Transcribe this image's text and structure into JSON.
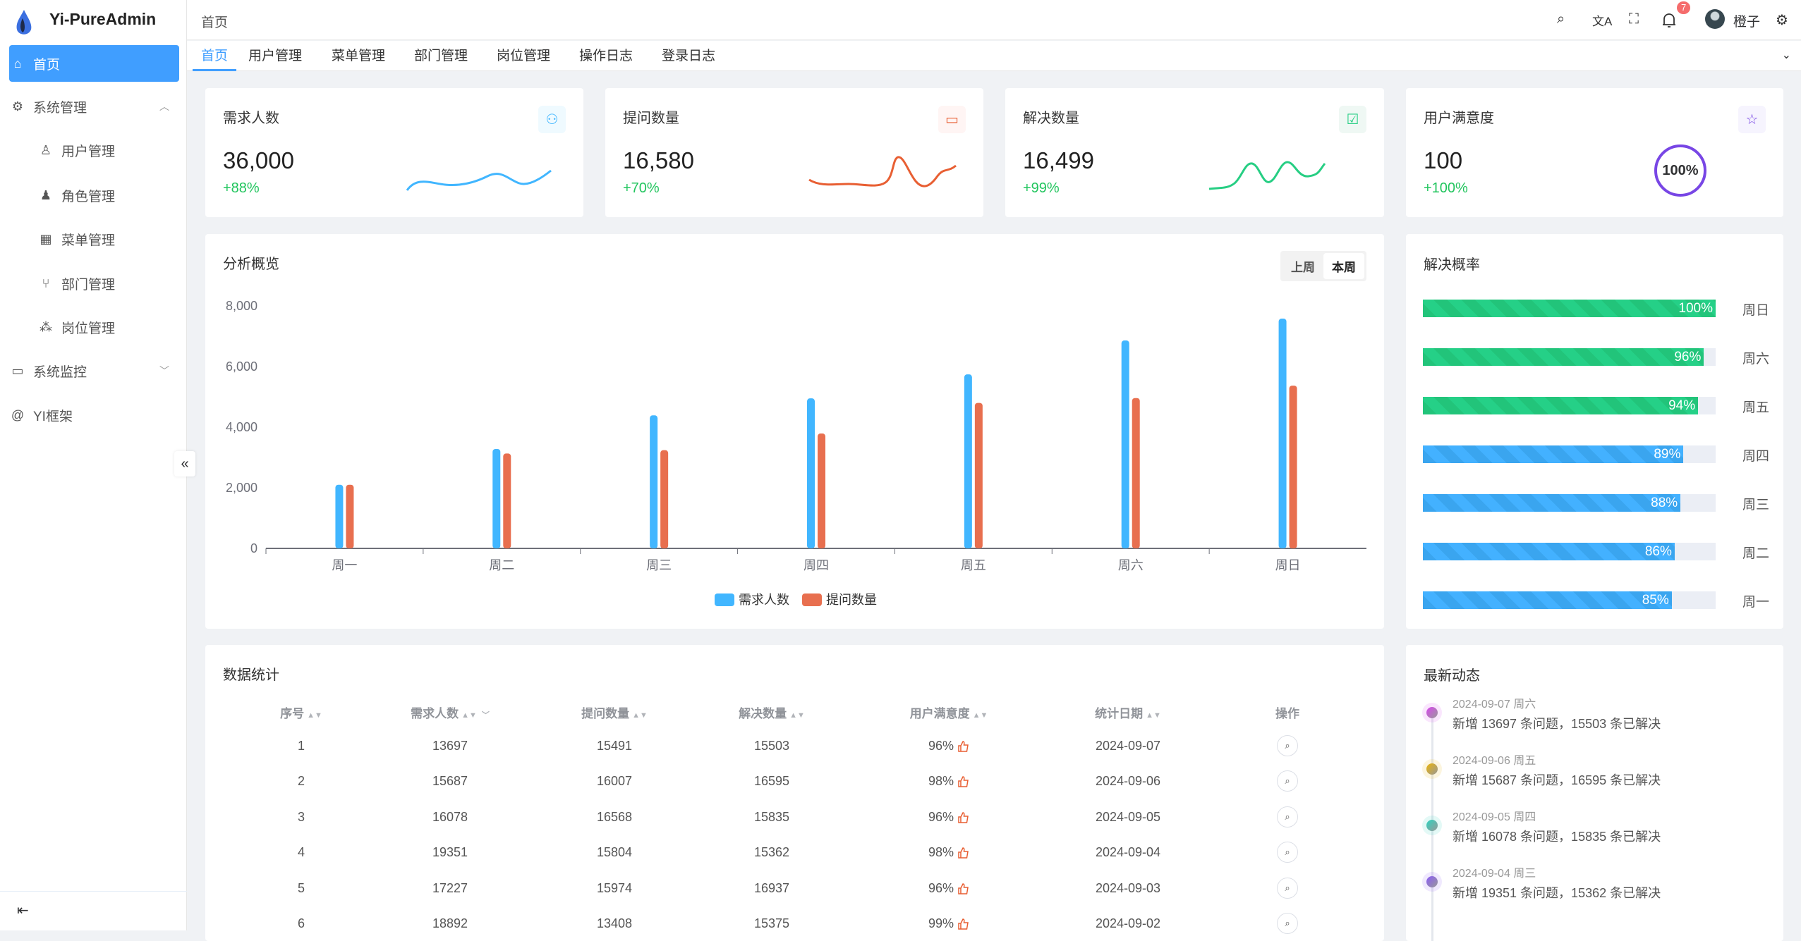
{
  "app": {
    "title": "Yi-PureAdmin"
  },
  "sidebar": {
    "items": [
      {
        "label": "首页",
        "icon": "home-icon",
        "active": true
      },
      {
        "label": "系统管理",
        "icon": "gear-icon",
        "expanded": true
      },
      {
        "label": "用户管理",
        "icon": "user-icon"
      },
      {
        "label": "角色管理",
        "icon": "user-filled-icon"
      },
      {
        "label": "菜单管理",
        "icon": "grid-icon"
      },
      {
        "label": "部门管理",
        "icon": "branch-icon"
      },
      {
        "label": "岗位管理",
        "icon": "network-icon"
      },
      {
        "label": "系统监控",
        "icon": "monitor-icon"
      },
      {
        "label": "YI框架",
        "icon": "at-icon"
      }
    ]
  },
  "header": {
    "breadcrumb": "首页",
    "user_name": "橙子",
    "notification_count": "7"
  },
  "tabs": [
    {
      "label": "首页",
      "active": true
    },
    {
      "label": "用户管理"
    },
    {
      "label": "菜单管理"
    },
    {
      "label": "部门管理"
    },
    {
      "label": "岗位管理"
    },
    {
      "label": "操作日志"
    },
    {
      "label": "登录日志"
    }
  ],
  "stats": [
    {
      "title": "需求人数",
      "value": "36,000",
      "change": "+88%",
      "color": "#41b6ff"
    },
    {
      "title": "提问数量",
      "value": "16,580",
      "change": "+70%",
      "color": "#e85f33"
    },
    {
      "title": "解决数量",
      "value": "16,499",
      "change": "+99%",
      "color": "#26ce83"
    },
    {
      "title": "用户满意度",
      "value": "100",
      "change": "+100%",
      "color": "#7846e5",
      "ring": "100%"
    }
  ],
  "chart_data": {
    "type": "bar",
    "title": "分析概览",
    "toggle": [
      "上周",
      "本周"
    ],
    "toggle_active": "本周",
    "categories": [
      "周一",
      "周二",
      "周三",
      "周四",
      "周五",
      "周六",
      "周日"
    ],
    "ylim": [
      0,
      8000
    ],
    "yticks": [
      "0",
      "2,000",
      "4,000",
      "6,000",
      "8,000"
    ],
    "legend": "bottom",
    "series": [
      {
        "name": "需求人数",
        "color": "#41b6ff",
        "values": [
          2100,
          3280,
          4390,
          4950,
          5740,
          6860,
          7580
        ]
      },
      {
        "name": "提问数量",
        "color": "#e86f4f",
        "values": [
          2100,
          3130,
          3240,
          3790,
          4800,
          4960,
          5370
        ]
      }
    ]
  },
  "rates": {
    "title": "解决概率",
    "items": [
      {
        "day": "周日",
        "value": 100,
        "label": "100%",
        "color": "green"
      },
      {
        "day": "周六",
        "value": 96,
        "label": "96%",
        "color": "green"
      },
      {
        "day": "周五",
        "value": 94,
        "label": "94%",
        "color": "green"
      },
      {
        "day": "周四",
        "value": 89,
        "label": "89%",
        "color": "blue"
      },
      {
        "day": "周三",
        "value": 88,
        "label": "88%",
        "color": "blue"
      },
      {
        "day": "周二",
        "value": 86,
        "label": "86%",
        "color": "blue"
      },
      {
        "day": "周一",
        "value": 85,
        "label": "85%",
        "color": "blue"
      }
    ]
  },
  "table": {
    "title": "数据统计",
    "columns": [
      "序号",
      "需求人数",
      "提问数量",
      "解决数量",
      "用户满意度",
      "统计日期",
      "操作"
    ],
    "rows": [
      [
        "1",
        "13697",
        "15491",
        "15503",
        "96%",
        "2024-09-07"
      ],
      [
        "2",
        "15687",
        "16007",
        "16595",
        "98%",
        "2024-09-06"
      ],
      [
        "3",
        "16078",
        "16568",
        "15835",
        "96%",
        "2024-09-05"
      ],
      [
        "4",
        "19351",
        "15804",
        "15362",
        "98%",
        "2024-09-04"
      ],
      [
        "5",
        "17227",
        "15974",
        "16937",
        "96%",
        "2024-09-03"
      ],
      [
        "6",
        "18892",
        "13408",
        "15375",
        "99%",
        "2024-09-02"
      ]
    ]
  },
  "timeline": {
    "title": "最新动态",
    "items": [
      {
        "date": "2024-09-07 周六",
        "text": "新增 13697 条问题，15503 条已解决",
        "color": "#d946ef"
      },
      {
        "date": "2024-09-06 周五",
        "text": "新增 15687 条问题，16595 条已解决",
        "color": "#eab308"
      },
      {
        "date": "2024-09-05 周四",
        "text": "新增 16078 条问题，15835 条已解决",
        "color": "#2dd4bf"
      },
      {
        "date": "2024-09-04 周三",
        "text": "新增 19351 条问题，15362 条已解决",
        "color": "#8b5cf6"
      }
    ]
  }
}
